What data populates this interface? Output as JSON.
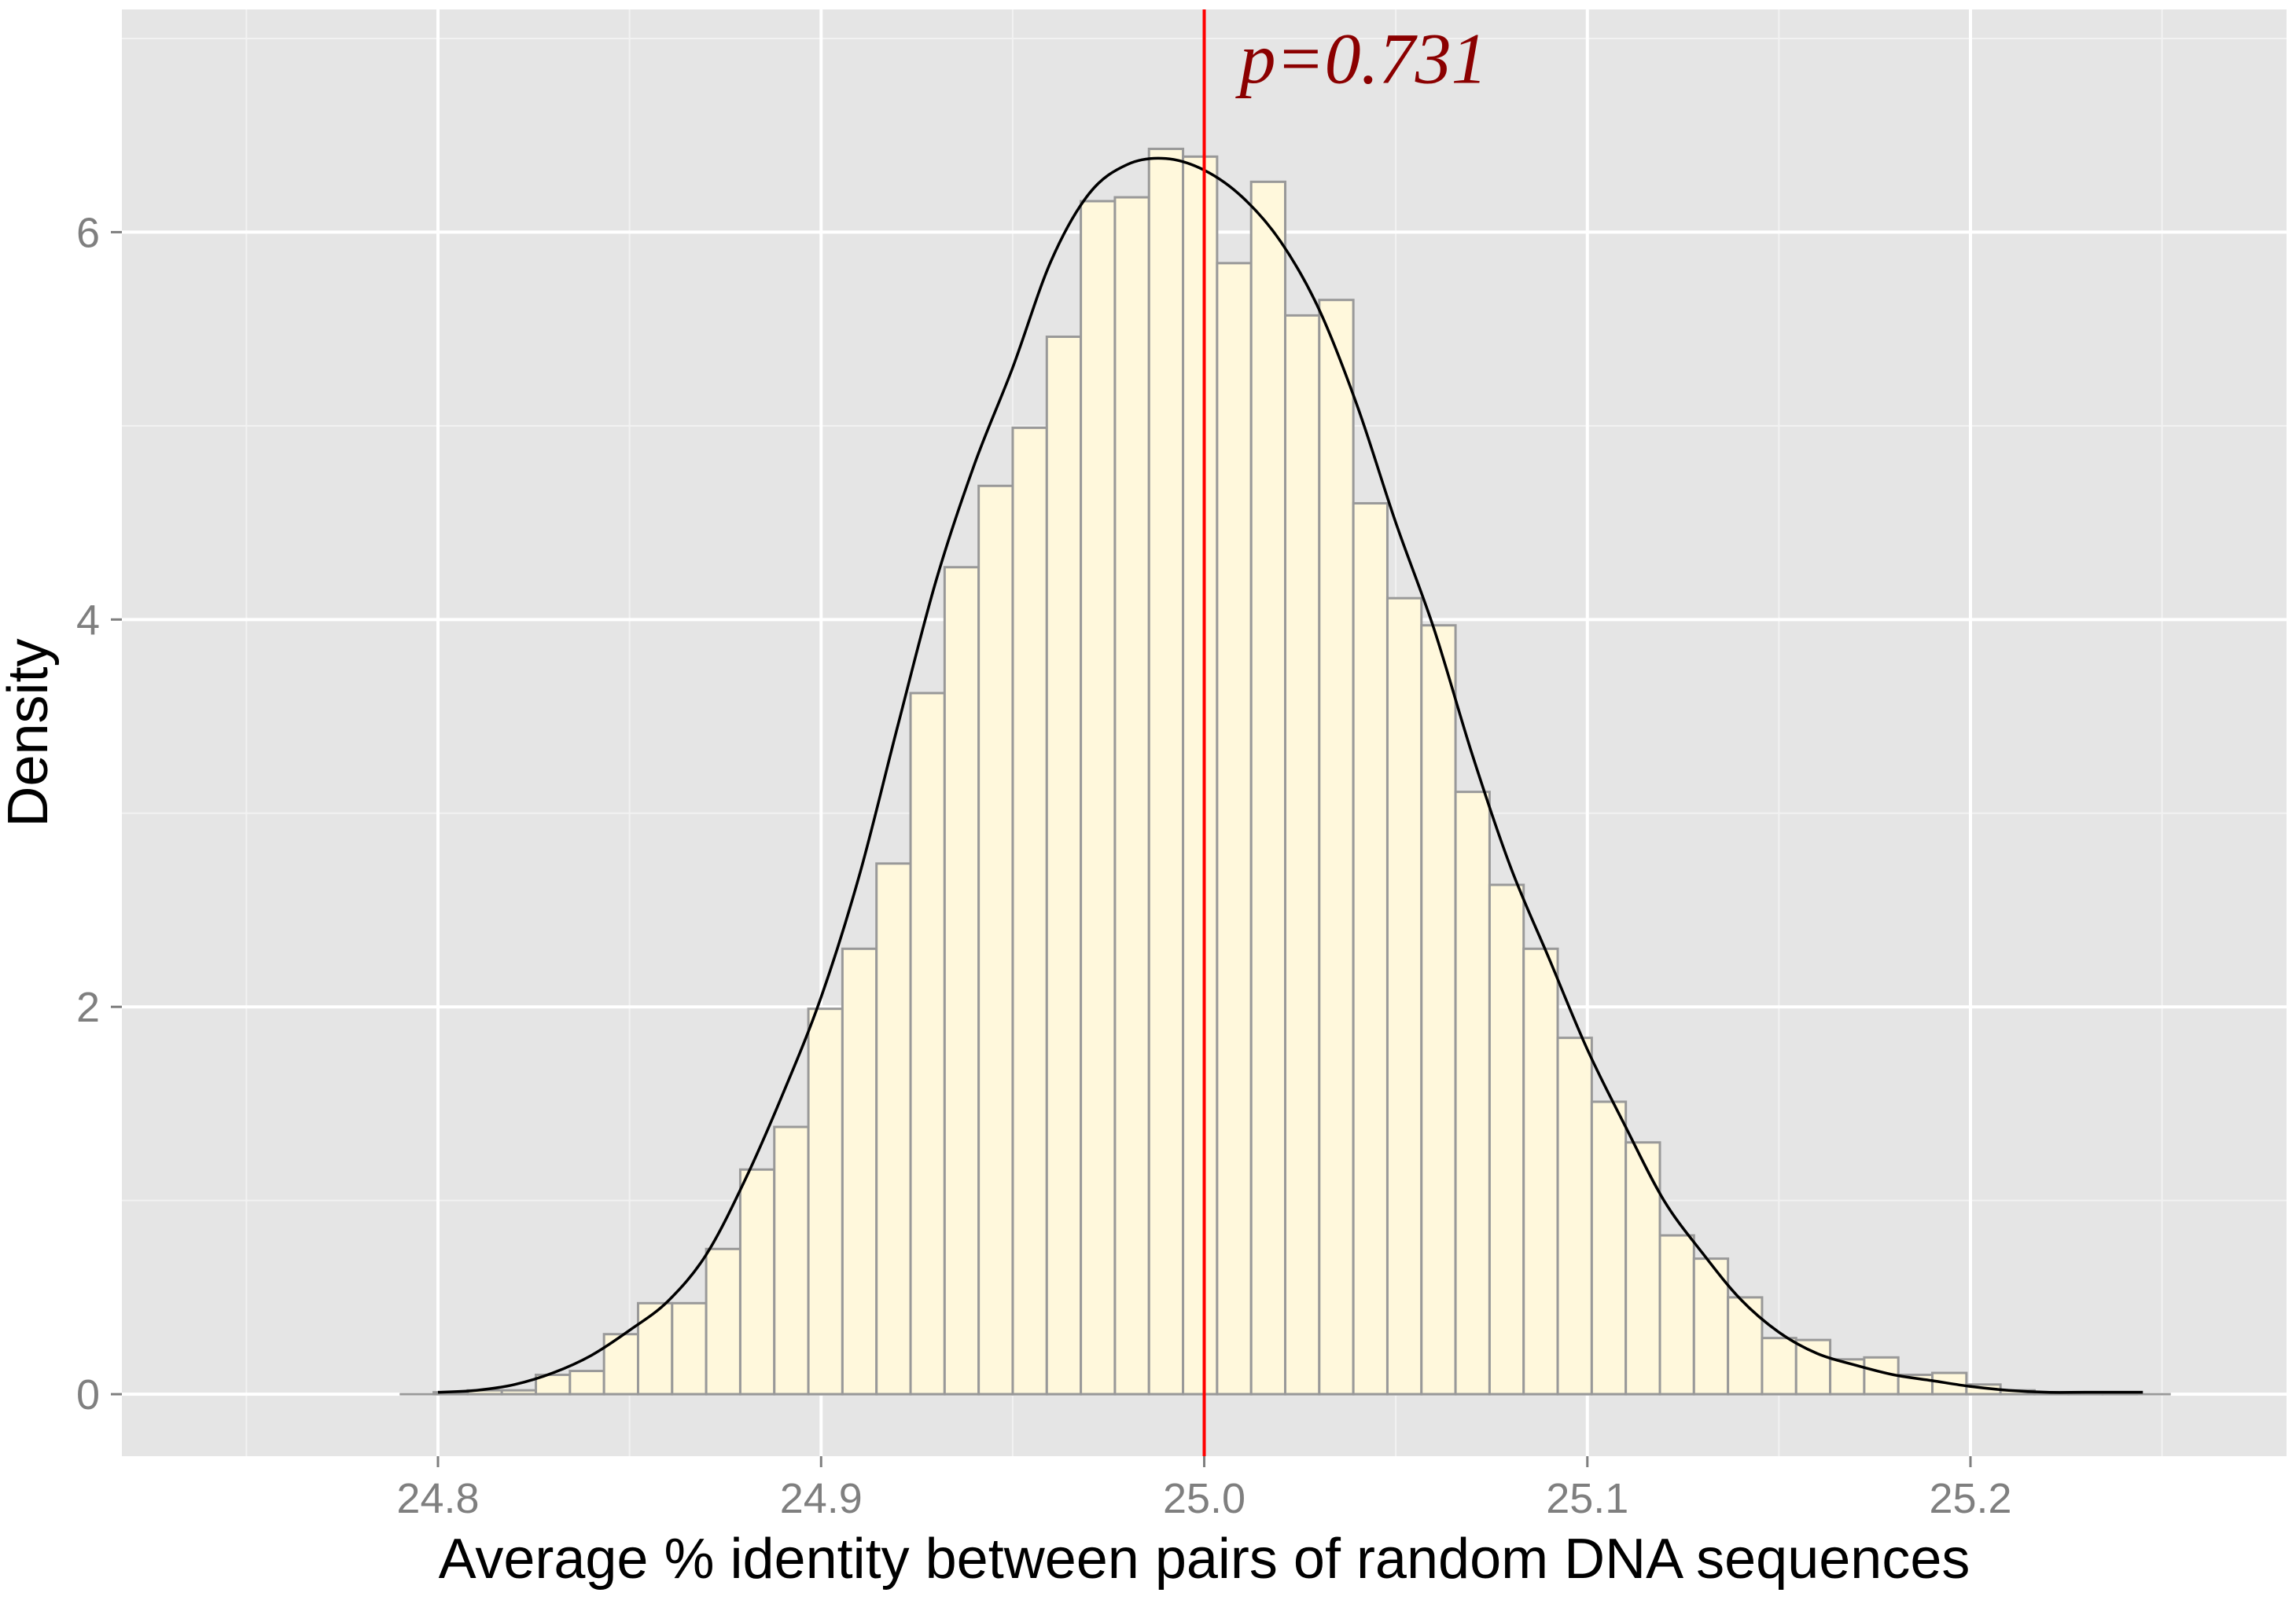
{
  "chart_data": {
    "type": "bar",
    "subtype": "histogram-with-density",
    "title": "",
    "xlabel": "Average % identity between pairs of random DNA sequences",
    "ylabel": "Density",
    "xlim": [
      24.7175,
      25.2825
    ],
    "ylim": [
      -0.32,
      7.15
    ],
    "x_ticks": [
      24.8,
      24.9,
      25.0,
      25.1,
      25.2
    ],
    "x_tick_labels": [
      "24.8",
      "24.9",
      "25.0",
      "25.1",
      "25.2"
    ],
    "y_ticks": [
      0,
      2,
      4,
      6
    ],
    "y_tick_labels": [
      "0",
      "2",
      "4",
      "6"
    ],
    "grid": true,
    "legend": "none",
    "histogram": {
      "bin_start": 24.79,
      "bin_width": 0.00889,
      "values": [
        0.0,
        0.01,
        0.02,
        0.02,
        0.1,
        0.12,
        0.31,
        0.47,
        0.47,
        0.75,
        1.16,
        1.38,
        1.99,
        2.3,
        2.74,
        3.62,
        4.27,
        4.69,
        4.99,
        5.46,
        6.16,
        6.18,
        6.43,
        6.39,
        5.84,
        6.26,
        5.57,
        5.65,
        4.6,
        4.11,
        3.97,
        3.11,
        2.63,
        2.3,
        1.84,
        1.51,
        1.3,
        0.82,
        0.7,
        0.5,
        0.29,
        0.28,
        0.18,
        0.19,
        0.1,
        0.11,
        0.05,
        0.02,
        0.01,
        0.01,
        0.01,
        0.0
      ]
    },
    "density_curve": {
      "x": [
        24.8,
        24.81,
        24.82,
        24.83,
        24.84,
        24.85,
        24.86,
        24.87,
        24.88,
        24.89,
        24.9,
        24.91,
        24.92,
        24.93,
        24.94,
        24.95,
        24.96,
        24.97,
        24.98,
        24.99,
        25.0,
        25.01,
        25.02,
        25.03,
        25.04,
        25.05,
        25.06,
        25.07,
        25.08,
        25.09,
        25.1,
        25.11,
        25.12,
        25.13,
        25.14,
        25.15,
        25.16,
        25.17,
        25.18,
        25.19,
        25.2,
        25.21,
        25.22,
        25.23,
        25.245
      ],
      "y": [
        0.01,
        0.02,
        0.05,
        0.11,
        0.2,
        0.33,
        0.48,
        0.72,
        1.1,
        1.55,
        2.05,
        2.68,
        3.45,
        4.2,
        4.8,
        5.3,
        5.85,
        6.2,
        6.35,
        6.38,
        6.32,
        6.18,
        5.95,
        5.6,
        5.1,
        4.5,
        3.95,
        3.3,
        2.72,
        2.25,
        1.78,
        1.38,
        1.0,
        0.73,
        0.49,
        0.32,
        0.21,
        0.15,
        0.1,
        0.07,
        0.04,
        0.02,
        0.01,
        0.01,
        0.01
      ]
    },
    "reference_line": {
      "x": 25.0,
      "color": "#ff0000"
    },
    "annotation": {
      "text": "p=0.731",
      "x": 25.0,
      "y": 6.9,
      "color": "#8b0000"
    },
    "colors": {
      "panel_background": "#e5e5e5",
      "grid_major": "#ffffff",
      "grid_minor": "#f2f2f2",
      "bar_fill": "#fff8dc",
      "bar_outline": "#999999",
      "density_line": "#000000"
    }
  }
}
